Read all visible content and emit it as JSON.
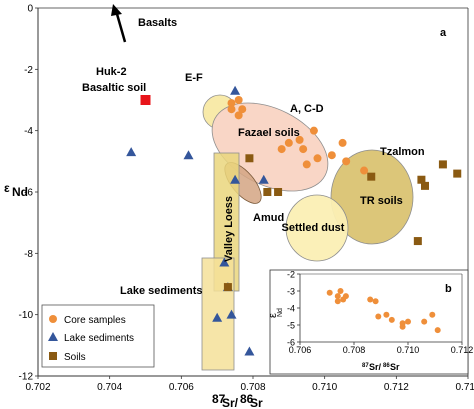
{
  "chart_data": [
    {
      "type": "scatter",
      "xlabel": "87Sr/86Sr",
      "ylabel": "εNd",
      "panel_label": "a",
      "xlim": [
        0.702,
        0.714
      ],
      "ylim": [
        -12,
        0
      ],
      "x_ticks": [
        "0.702",
        "0.704",
        "0.706",
        "0.708",
        "0.710",
        "0.712",
        "0.714"
      ],
      "y_ticks": [
        "0",
        "-2",
        "-4",
        "-6",
        "-8",
        "-10",
        "-12"
      ],
      "grid": false,
      "legend_position": "bottom-left",
      "series": [
        {
          "name": "Core samples",
          "color": "#ef8f3a",
          "marker": "circle",
          "points": [
            [
              0.7074,
              -3.1
            ],
            [
              0.7076,
              -3.0
            ],
            [
              0.7074,
              -3.3
            ],
            [
              0.7076,
              -3.5
            ],
            [
              0.7077,
              -3.3
            ],
            [
              0.709,
              -4.4
            ],
            [
              0.7093,
              -4.3
            ],
            [
              0.7097,
              -4.0
            ],
            [
              0.7094,
              -4.6
            ],
            [
              0.7088,
              -4.6
            ],
            [
              0.7095,
              -5.1
            ],
            [
              0.7098,
              -4.9
            ],
            [
              0.7102,
              -4.8
            ],
            [
              0.7105,
              -4.4
            ],
            [
              0.7111,
              -5.3
            ],
            [
              0.7106,
              -5.0
            ]
          ]
        },
        {
          "name": "Lake sediments",
          "color": "#34569b",
          "marker": "triangle",
          "points": [
            [
              0.7046,
              -4.7
            ],
            [
              0.7062,
              -4.8
            ],
            [
              0.7075,
              -2.7
            ],
            [
              0.7075,
              -5.6
            ],
            [
              0.7083,
              -5.6
            ],
            [
              0.7072,
              -8.3
            ],
            [
              0.7073,
              -9.1
            ],
            [
              0.707,
              -10.1
            ],
            [
              0.7074,
              -10.0
            ],
            [
              0.7079,
              -11.2
            ]
          ]
        },
        {
          "name": "Soils",
          "color": "#8a5a12",
          "marker": "square",
          "points": [
            [
              0.7079,
              -4.9
            ],
            [
              0.7084,
              -6.0
            ],
            [
              0.7087,
              -6.0
            ],
            [
              0.7113,
              -5.5
            ],
            [
              0.7127,
              -5.6
            ],
            [
              0.7128,
              -5.8
            ],
            [
              0.7133,
              -5.1
            ],
            [
              0.7137,
              -5.4
            ],
            [
              0.7126,
              -7.6
            ],
            [
              0.7073,
              -9.1
            ]
          ]
        },
        {
          "name": "Huk-2 Basaltic soil",
          "color": "#e8141a",
          "marker": "square",
          "points": [
            [
              0.705,
              -3.0
            ]
          ]
        }
      ],
      "annotations": [
        "Basalts",
        "Huk-2",
        "Basaltic soil",
        "E-F",
        "A, C-D",
        "Fazael soils",
        "Tzalmon",
        "TR soils",
        "Amud",
        "Settled dust",
        "Valley Loess",
        "Lake sediments"
      ]
    },
    {
      "type": "scatter",
      "panel_label": "b",
      "xlabel": "87Sr/86Sr",
      "ylabel": "εNd",
      "xlim": [
        0.706,
        0.712
      ],
      "ylim": [
        -6,
        -2
      ],
      "x_ticks": [
        "0.706",
        "0.708",
        "0.710",
        "0.712"
      ],
      "y_ticks": [
        "-2",
        "-3",
        "-4",
        "-5",
        "-6"
      ],
      "series": [
        {
          "name": "Core samples",
          "color": "#ef8f3a",
          "marker": "circle",
          "points": [
            [
              0.7071,
              -3.1
            ],
            [
              0.7075,
              -3.0
            ],
            [
              0.7074,
              -3.3
            ],
            [
              0.7076,
              -3.5
            ],
            [
              0.7077,
              -3.3
            ],
            [
              0.7074,
              -3.6
            ],
            [
              0.7086,
              -3.5
            ],
            [
              0.7088,
              -3.6
            ],
            [
              0.7089,
              -4.5
            ],
            [
              0.7092,
              -4.4
            ],
            [
              0.7094,
              -4.7
            ],
            [
              0.7098,
              -4.9
            ],
            [
              0.7098,
              -5.1
            ],
            [
              0.71,
              -4.8
            ],
            [
              0.7106,
              -4.8
            ],
            [
              0.7109,
              -4.4
            ],
            [
              0.7111,
              -5.3
            ]
          ]
        }
      ]
    }
  ]
}
